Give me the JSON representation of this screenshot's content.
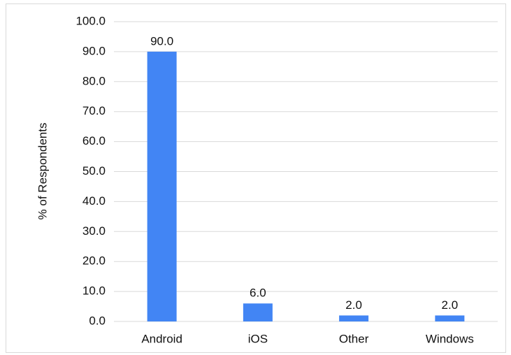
{
  "chart_data": {
    "type": "bar",
    "categories": [
      "Android",
      "iOS",
      "Other",
      "Windows"
    ],
    "values": [
      90,
      6,
      2,
      2
    ],
    "value_labels": [
      "90.0",
      "6.0",
      "2.0",
      "2.0"
    ],
    "color": "#4285f4",
    "y_label": "% of Respondents",
    "ylim": [
      0,
      100
    ],
    "yticks": [
      {
        "value": 0,
        "label": "0.0"
      },
      {
        "value": 10,
        "label": "10.0"
      },
      {
        "value": 20,
        "label": "20.0"
      },
      {
        "value": 30,
        "label": "30.0"
      },
      {
        "value": 40,
        "label": "40.0"
      },
      {
        "value": 50,
        "label": "50.0"
      },
      {
        "value": 60,
        "label": "60.0"
      },
      {
        "value": 70,
        "label": "70.0"
      },
      {
        "value": 80,
        "label": "80.0"
      },
      {
        "value": 90,
        "label": "90.0"
      },
      {
        "value": 100,
        "label": "100.0"
      }
    ],
    "grid": true
  }
}
